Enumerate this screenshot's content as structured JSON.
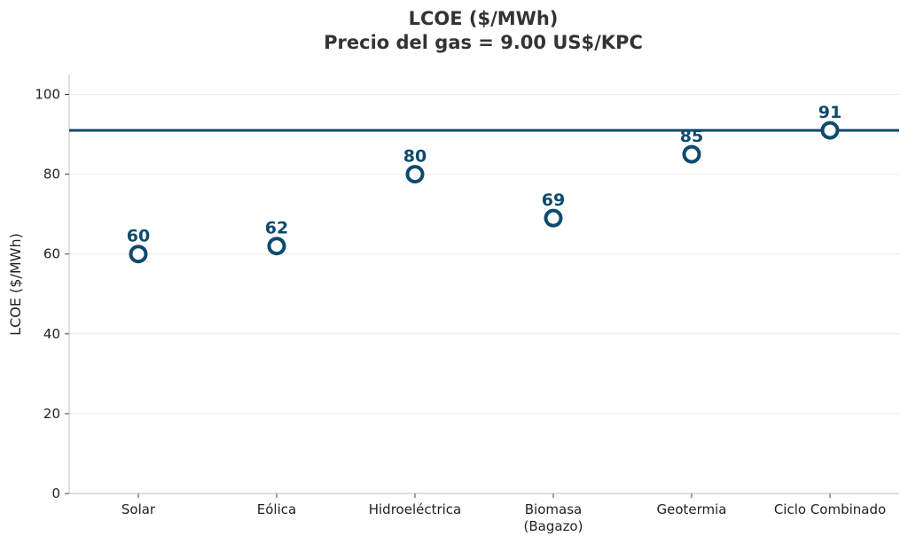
{
  "chart_data": {
    "type": "scatter",
    "title_line1": "LCOE ($/MWh)",
    "title_line2": "Precio del gas = 9.00 US$/KPC",
    "ylabel": "LCOE ($/MWh)",
    "xlabel": "",
    "categories": [
      [
        "Solar"
      ],
      [
        "Eólica"
      ],
      [
        "Hidroeléctrica"
      ],
      [
        "Biomasa",
        "(Bagazo)"
      ],
      [
        "Geotermia"
      ],
      [
        "Ciclo Combinado"
      ]
    ],
    "values": [
      60,
      62,
      80,
      69,
      85,
      91
    ],
    "data_labels": [
      "60",
      "62",
      "80",
      "69",
      "85",
      "91"
    ],
    "reference_line": 91,
    "ylim": [
      0,
      105
    ],
    "yticks": [
      0,
      20,
      40,
      60,
      80,
      100
    ],
    "ytick_labels": [
      "0",
      "20",
      "40",
      "60",
      "80",
      "100"
    ],
    "grid": "horizontal",
    "marker": "hollow-circle",
    "colors": {
      "series": "#0d4a6e",
      "grid": "#ececec",
      "axis": "#cccccc"
    }
  }
}
